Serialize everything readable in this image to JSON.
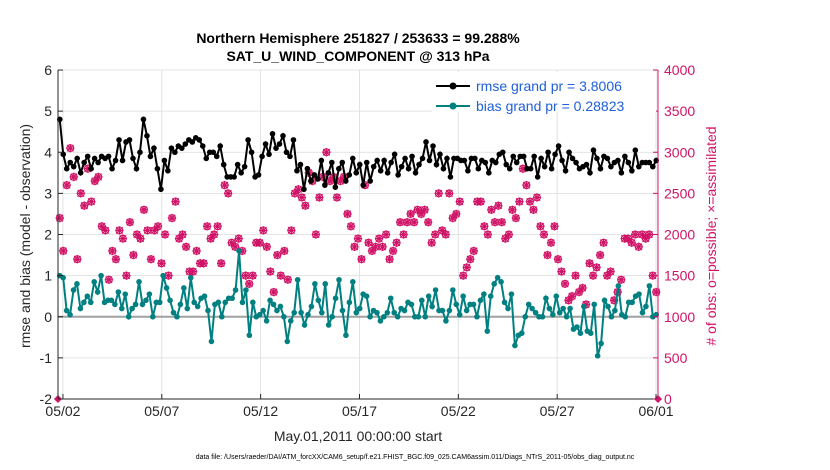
{
  "chart_data": {
    "type": "line",
    "title_line1": "Northern Hemisphere 251827 / 253633 = 99.288%",
    "title_line2": "SAT_U_WIND_COMPONENT @ 313 hPa",
    "xlabel": "May.01,2011 00:00:00 start",
    "ylabel_left": "rmse and bias (model - observation)",
    "ylabel_right": "# of obs: o=possible; ×=assimilated",
    "footer": "data file: /Users/raeder/DAI/ATM_forcXX/CAM6_setup/f.e21.FHIST_BGC.f09_025.CAM6assim.011/Diags_NTrS_2011-05/obs_diag_output.nc",
    "xticks": [
      {
        "day": 1,
        "label": "05/02"
      },
      {
        "day": 6,
        "label": "05/07"
      },
      {
        "day": 11,
        "label": "05/12"
      },
      {
        "day": 16,
        "label": "05/17"
      },
      {
        "day": 21,
        "label": "05/22"
      },
      {
        "day": 26,
        "label": "05/27"
      },
      {
        "day": 31,
        "label": "06/01"
      }
    ],
    "xlim": [
      0.75,
      31.1
    ],
    "ylim_left": [
      -2,
      6
    ],
    "yticks_left": [
      "-2",
      "-1",
      "0",
      "1",
      "2",
      "3",
      "4",
      "5",
      "6"
    ],
    "ylim_right": [
      0,
      4000
    ],
    "yticks_right": [
      "0",
      "500",
      "1000",
      "1500",
      "2000",
      "2500",
      "3000",
      "3500",
      "4000"
    ],
    "grid": true,
    "legend_position": "top-right",
    "series": [
      {
        "name": "rmse grand pr = 3.8006",
        "color": "#000000",
        "values": [
          4.8,
          3.95,
          3.6,
          3.75,
          3.65,
          3.85,
          3.5,
          3.75,
          3.9,
          3.6,
          3.85,
          3.75,
          3.9,
          3.85,
          3.9,
          3.6,
          3.8,
          4.3,
          3.8,
          4.25,
          4.3,
          3.85,
          3.6,
          4.0,
          4.8,
          4.4,
          3.9,
          4.1,
          3.6,
          3.1,
          3.8,
          3.55,
          4.1,
          4.0,
          4.15,
          4.1,
          4.2,
          4.3,
          4.25,
          4.35,
          4.3,
          4.15,
          3.85,
          4.0,
          4.0,
          3.9,
          4.15,
          3.7,
          3.4,
          3.4,
          3.4,
          3.7,
          3.5,
          3.65,
          4.3,
          4.0,
          3.4,
          3.45,
          3.9,
          4.2,
          3.95,
          4.45,
          4.1,
          4.2,
          4.4,
          4.0,
          3.9,
          4.3,
          3.55,
          3.7,
          3.1,
          3.6,
          3.3,
          3.45,
          3.35,
          3.8,
          3.2,
          3.5,
          3.75,
          3.15,
          3.6,
          3.75,
          3.3,
          3.45,
          3.85,
          3.5,
          3.7,
          3.2,
          3.75,
          3.3,
          3.65,
          3.8,
          3.55,
          3.8,
          3.5,
          3.75,
          3.95,
          3.45,
          3.65,
          3.85,
          3.6,
          3.9,
          3.5,
          3.7,
          3.85,
          4.25,
          3.8,
          4.15,
          3.7,
          3.95,
          3.6,
          3.85,
          3.4,
          3.85,
          3.85,
          3.8,
          3.8,
          3.55,
          3.85,
          3.85,
          3.6,
          3.8,
          3.75,
          3.5,
          3.8,
          3.75,
          3.95,
          4.0,
          3.7,
          3.6,
          3.9,
          3.75,
          3.9,
          3.9,
          3.6,
          3.6,
          3.9,
          3.4,
          3.85,
          3.65,
          4.0,
          3.6,
          3.95,
          4.15,
          3.8,
          3.55,
          4.0,
          3.85,
          3.75,
          3.6,
          3.65,
          3.7,
          3.5,
          4.05,
          3.85,
          3.6,
          3.9,
          3.85,
          3.65,
          3.75,
          3.8,
          3.5,
          3.9,
          3.75,
          3.55,
          4.05,
          3.65,
          3.75,
          3.75,
          3.75,
          3.65,
          3.8
        ]
      },
      {
        "name": "bias grand pr = 0.28823",
        "color": "#008080",
        "values": [
          1.0,
          0.95,
          0.15,
          0.05,
          0.65,
          0.8,
          0.2,
          0.35,
          0.5,
          0.35,
          0.85,
          0.6,
          1.0,
          0.35,
          0.4,
          0.4,
          0.3,
          0.6,
          0.2,
          0.55,
          0.0,
          0.2,
          0.3,
          0.85,
          0.3,
          0.4,
          0.55,
          0.0,
          0.35,
          0.35,
          1.0,
          0.7,
          0.4,
          0.1,
          0.0,
          0.3,
          0.7,
          0.2,
          0.95,
          0.35,
          0.25,
          0.45,
          0.5,
          0.15,
          -0.6,
          0.3,
          0.35,
          0.0,
          0.35,
          0.45,
          0.45,
          0.65,
          1.6,
          0.35,
          0.65,
          -0.45,
          0.35,
          0.0,
          0.05,
          0.15,
          -0.1,
          0.4,
          0.3,
          0.15,
          0.25,
          0.0,
          -0.6,
          -0.1,
          0.1,
          0.9,
          0.1,
          -0.2,
          0.05,
          0.25,
          0.8,
          0.4,
          0.1,
          0.8,
          -0.2,
          0.0,
          0.45,
          0.9,
          0.15,
          -0.45,
          0.35,
          0.85,
          0.1,
          0.2,
          0.55,
          0.5,
          0.0,
          0.15,
          0.1,
          -0.1,
          0.0,
          0.1,
          0.45,
          0.1,
          0.0,
          0.2,
          0.15,
          0.35,
          0.3,
          0.0,
          0.0,
          0.4,
          0.0,
          0.5,
          0.25,
          0.65,
          0.15,
          0.15,
          -0.1,
          0.15,
          0.65,
          0.3,
          0.05,
          0.5,
          0.15,
          0.3,
          0.3,
          0.0,
          0.4,
          0.55,
          -0.35,
          0.5,
          0.8,
          0.95,
          0.85,
          0.35,
          0.2,
          0.55,
          -0.7,
          -0.45,
          -0.4,
          0.0,
          0.3,
          0.2,
          0.1,
          0.0,
          0.0,
          0.45,
          0.2,
          0.05,
          0.5,
          0.1,
          0.2,
          0.0,
          0.2,
          -0.3,
          -0.25,
          -0.4,
          0.25,
          -0.35,
          -0.4,
          0.3,
          -0.95,
          -0.65,
          0.4,
          0.25,
          0.0,
          0.15,
          0.75,
          0.05,
          0.0,
          0.35,
          0.35,
          0.5,
          0.55,
          0.1,
          0.25,
          0.75,
          0.0,
          0.05
        ]
      },
      {
        "name": "# of obs possible",
        "color": "#d01467",
        "marker": "circle",
        "values": [
          2200,
          1800,
          2600,
          3050,
          2700,
          1700,
          2500,
          2350,
          2800,
          2400,
          2650,
          2700,
          2100,
          2050,
          1450,
          1800,
          1700,
          2050,
          1950,
          1500,
          2150,
          1750,
          2000,
          1950,
          2300,
          2050,
          1700,
          2050,
          2100,
          1650,
          2000,
          1500,
          2200,
          2400,
          1950,
          2000,
          1850,
          1550,
          1550,
          1800,
          1650,
          1650,
          2100,
          1950,
          2000,
          2100,
          1650,
          2600,
          2500,
          1900,
          1850,
          1950,
          1800,
          1500,
          1400,
          1500,
          1900,
          1900,
          2050,
          1850,
          1550,
          1300,
          1750,
          1500,
          1800,
          1450,
          2050,
          2500,
          2550,
          2450,
          2350,
          2750,
          2650,
          2000,
          2450,
          2700,
          3000,
          2650,
          2700,
          2450,
          2650,
          2700,
          2250,
          2100,
          1850,
          1950,
          1700,
          2600,
          1900,
          1800,
          1850,
          1950,
          1850,
          2000,
          1700,
          1800,
          1900,
          2150,
          2000,
          2150,
          2250,
          2150,
          2300,
          2250,
          2300,
          2150,
          1900,
          2000,
          2500,
          2050,
          2000,
          2500,
          2200,
          2250,
          2400,
          1500,
          1600,
          1700,
          1800,
          2400,
          2400,
          2100,
          2000,
          2300,
          2150,
          2350,
          2150,
          1950,
          2000,
          2300,
          2200,
          2400,
          2800,
          2600,
          2400,
          2300,
          2450,
          2100,
          2000,
          1750,
          1900,
          2100,
          1700,
          1550,
          1400,
          1200,
          1250,
          1500,
          1300,
          1350,
          1150,
          1650,
          1500,
          1600,
          1750,
          1900,
          1500,
          1550,
          1200,
          1300,
          1450,
          1950,
          1950,
          1900,
          2000,
          1850,
          2000,
          1950,
          2000,
          1500,
          1300
        ]
      },
      {
        "name": "# of obs assimilated",
        "color": "#d01467",
        "marker": "x",
        "values": [
          2200,
          1800,
          2600,
          3050,
          2700,
          1700,
          2500,
          2350,
          2800,
          2400,
          2650,
          2700,
          2100,
          2050,
          1450,
          1800,
          1700,
          2050,
          1950,
          1500,
          2150,
          1750,
          2000,
          1950,
          2300,
          2050,
          1700,
          2050,
          2100,
          1650,
          2000,
          1500,
          2200,
          2400,
          1950,
          2000,
          1850,
          1550,
          1550,
          1800,
          1650,
          1650,
          2100,
          1950,
          2000,
          2100,
          1650,
          2600,
          2500,
          1900,
          1850,
          1950,
          1800,
          1500,
          1400,
          1500,
          1900,
          1900,
          2050,
          1850,
          1550,
          1300,
          1750,
          1500,
          1800,
          1450,
          2050,
          2500,
          2550,
          2450,
          2350,
          2750,
          2650,
          2000,
          2450,
          2700,
          3000,
          2650,
          2700,
          2450,
          2650,
          2700,
          2250,
          2100,
          1850,
          1950,
          1700,
          2600,
          1900,
          1800,
          1850,
          1950,
          1850,
          2000,
          1700,
          1800,
          1900,
          2150,
          2000,
          2150,
          2250,
          2150,
          2300,
          2250,
          2300,
          2150,
          1900,
          2000,
          2500,
          2050,
          2000,
          2500,
          2200,
          2250,
          2400,
          1500,
          1600,
          1700,
          1800,
          2400,
          2400,
          2100,
          2000,
          2300,
          2150,
          2350,
          2150,
          1950,
          2000,
          2300,
          2200,
          2400,
          2800,
          2600,
          2400,
          2300,
          2450,
          2100,
          2000,
          1750,
          1900,
          2100,
          1700,
          1550,
          1400,
          1200,
          1250,
          1500,
          1300,
          1350,
          1150,
          1650,
          1500,
          1600,
          1750,
          1900,
          1500,
          1550,
          1200,
          1300,
          1450,
          1950,
          1950,
          1900,
          2000,
          1850,
          2000,
          1950,
          2000,
          1500,
          1300
        ]
      }
    ]
  }
}
